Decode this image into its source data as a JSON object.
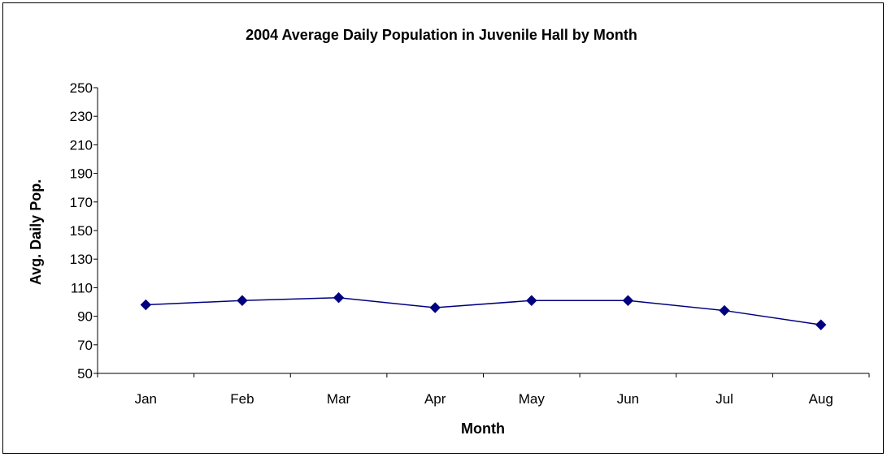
{
  "chart_data": {
    "type": "line",
    "title": "2004 Average Daily Population in Juvenile Hall by Month",
    "xlabel": "Month",
    "ylabel": "Avg. Daily Pop.",
    "categories": [
      "Jan",
      "Feb",
      "Mar",
      "Apr",
      "May",
      "Jun",
      "Jul",
      "Aug"
    ],
    "series": [
      {
        "values": [
          98,
          101,
          103,
          96,
          101,
          101,
          94,
          84
        ]
      }
    ],
    "ylim": [
      50,
      250
    ],
    "yticks": [
      "250",
      "230",
      "210",
      "190",
      "170",
      "150",
      "130",
      "110",
      "90",
      "70",
      "50"
    ],
    "grid": false,
    "legend": "none",
    "colors": {
      "line": "#000080",
      "marker": "#000080",
      "axis": "#000000"
    }
  }
}
